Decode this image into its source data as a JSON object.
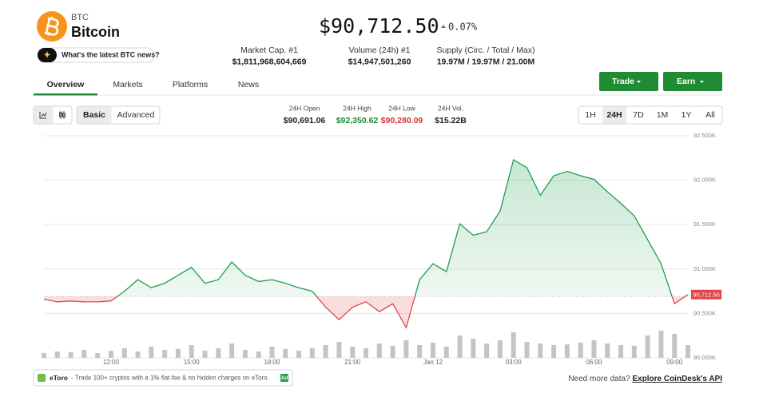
{
  "header": {
    "symbol": "BTC",
    "name": "Bitcoin",
    "price": "$90,712.50",
    "change": "0.07%",
    "news_button": "What's the latest BTC news?"
  },
  "stats": [
    {
      "label": "Market Cap. #1",
      "value": "$1,811,968,604,669"
    },
    {
      "label": "Volume (24h) #1",
      "value": "$14,947,501,260"
    },
    {
      "label": "Supply (Circ. / Total / Max)",
      "value": "19.97M / 19.97M / 21.00M"
    }
  ],
  "tabs": [
    "Overview",
    "Markets",
    "Platforms",
    "News"
  ],
  "buttons": {
    "trade": "Trade",
    "earn": "Earn"
  },
  "toolbar": {
    "views": [
      "Basic",
      "Advanced"
    ],
    "day_stats": [
      {
        "label": "24H Open",
        "value": "$90,691.06"
      },
      {
        "label": "24H High",
        "value": "$92,350.62"
      },
      {
        "label": "24H Low",
        "value": "$90,280.09"
      },
      {
        "label": "24H Vol.",
        "value": "$15.22B"
      }
    ],
    "ranges": [
      "1H",
      "24H",
      "7D",
      "1M",
      "1Y",
      "All"
    ]
  },
  "chart_data": {
    "type": "line",
    "categories": [
      null,
      null,
      null,
      null,
      null,
      "12:00",
      null,
      null,
      null,
      null,
      null,
      "15:00",
      null,
      null,
      null,
      null,
      null,
      "18:00",
      null,
      null,
      null,
      null,
      null,
      "21:00",
      null,
      null,
      null,
      null,
      null,
      "Jan 12",
      null,
      null,
      null,
      null,
      null,
      "03:00",
      null,
      null,
      null,
      null,
      null,
      "06:00",
      null,
      null,
      null,
      null,
      null,
      "09:00",
      null
    ],
    "series": [
      {
        "name": "Price",
        "color": "#1f9d4c",
        "values": [
          90660,
          90630,
          90640,
          90630,
          90630,
          90640,
          90750,
          90880,
          90790,
          90840,
          90930,
          91020,
          90840,
          90880,
          91080,
          90930,
          90860,
          90880,
          90840,
          90790,
          90750,
          90570,
          90430,
          90570,
          90630,
          90520,
          90610,
          90340,
          90880,
          91060,
          90970,
          91510,
          91380,
          91420,
          91650,
          92230,
          92140,
          91830,
          92050,
          92100,
          92050,
          92010,
          91870,
          91740,
          91600,
          91330,
          91060,
          90610,
          90712.5
        ]
      },
      {
        "name": "Volume",
        "color": "#c4c4c4",
        "axis": "y2",
        "values": [
          15,
          20,
          18,
          25,
          15,
          22,
          30,
          20,
          35,
          25,
          28,
          40,
          22,
          30,
          45,
          25,
          20,
          35,
          28,
          22,
          30,
          40,
          50,
          35,
          30,
          45,
          38,
          55,
          40,
          48,
          35,
          70,
          60,
          45,
          55,
          80,
          50,
          45,
          40,
          42,
          48,
          55,
          45,
          40,
          38,
          70,
          85,
          75,
          40
        ]
      }
    ],
    "baseline": 90691.06,
    "baseline_color": "#e0464b",
    "last_price": {
      "value": 90712.5,
      "label": "90,712.50"
    },
    "ylim": [
      90000,
      92500
    ],
    "yticks": [
      {
        "value": 90000,
        "label": "90.000K"
      },
      {
        "value": 90500,
        "label": "90.500K"
      },
      {
        "value": 91000,
        "label": "91.000K"
      },
      {
        "value": 91500,
        "label": "91.500K"
      },
      {
        "value": 92000,
        "label": "92.000K"
      },
      {
        "value": 92500,
        "label": "92.500K"
      }
    ],
    "y2lim": [
      0,
      100
    ],
    "grid": true
  },
  "footer": {
    "ad_brand": "eToro",
    "ad_text": "- Trade 100+ cryptos with a 1% flat fee & no hidden charges on eToro.",
    "ad_badge": "Ad",
    "more_data": "Need more data?",
    "api_link": "Explore CoinDesk's API"
  }
}
